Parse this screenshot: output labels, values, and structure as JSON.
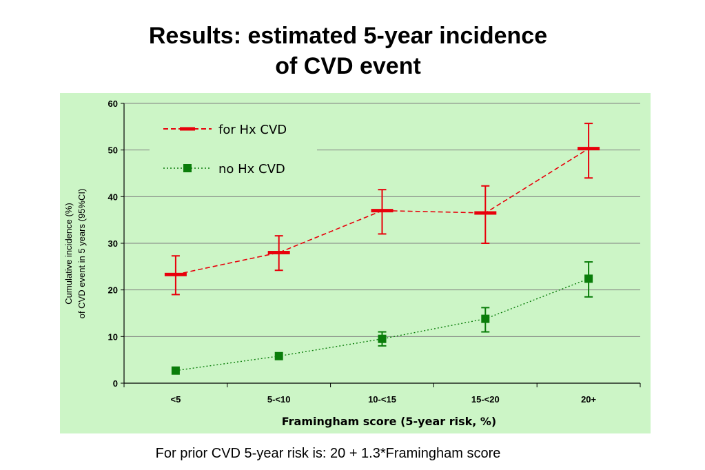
{
  "slide": {
    "title_line1": "Results:  estimated 5-year incidence",
    "title_line2": "of CVD event",
    "footnote": "For prior CVD 5-year risk is: 20 + 1.3*Framingham score"
  },
  "colors": {
    "plot_background": "#ccf5c6",
    "series_hx": "#e8000b",
    "series_no_hx": "#0a7d0a",
    "gridline": "#808080"
  },
  "chart_data": {
    "type": "line",
    "title": "",
    "xlabel": "Framingham score (5-year risk, %)",
    "ylabel_line1": "Cumulative incidence (%)",
    "ylabel_line2": "of CVD event in 5 years (95%CI)",
    "categories": [
      "<5",
      "5-<10",
      "10-<15",
      "15-<20",
      "20+"
    ],
    "ylim": [
      0,
      60
    ],
    "yticks": [
      "0",
      "10",
      "20",
      "30",
      "40",
      "50",
      "60"
    ],
    "grid": "horizontal",
    "legend_position": "top-left",
    "series": [
      {
        "name": "for Hx CVD",
        "marker": "dash",
        "line_style": "dashed",
        "values": [
          23.3,
          28.0,
          37.0,
          36.5,
          50.3
        ],
        "ci_low": [
          19.0,
          24.2,
          32.0,
          30.0,
          44.0
        ],
        "ci_high": [
          27.3,
          31.6,
          41.5,
          42.3,
          55.7
        ]
      },
      {
        "name": "no Hx CVD",
        "marker": "square",
        "line_style": "dotted",
        "values": [
          2.7,
          5.8,
          9.5,
          13.8,
          22.4
        ],
        "ci_low": [
          2.7,
          5.8,
          8.0,
          11.0,
          18.5
        ],
        "ci_high": [
          2.7,
          5.8,
          11.0,
          16.2,
          26.0
        ]
      }
    ]
  }
}
